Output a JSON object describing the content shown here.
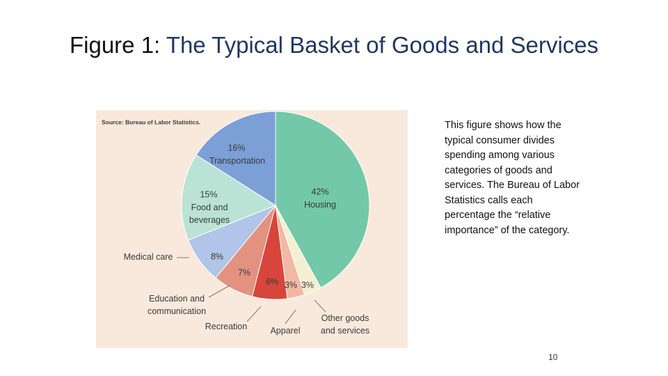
{
  "slide": {
    "title_label": "Figure 1:",
    "title": "The Typical Basket of Goods and Services",
    "body": "This figure shows how the typical consumer divides spending among various categories of goods and services. The Bureau of Labor Statistics calls each percentage the “relative importance” of the category.",
    "page_number": "10"
  },
  "chart_data": {
    "type": "pie",
    "source": "Source: Bureau of Labor Statistics.",
    "categories": [
      "Housing",
      "Other goods\nand services",
      "Apparel",
      "Recreation",
      "Education and\ncommunication",
      "Medical care",
      "Food and\nbeverages",
      "Transportation"
    ],
    "values": [
      42,
      3,
      3,
      6,
      7,
      8,
      15,
      16
    ],
    "value_labels": [
      "42%",
      "3%",
      "3%",
      "6%",
      "7%",
      "8%",
      "15%",
      "16%"
    ],
    "colors": [
      "#72c8a9",
      "#f5efd2",
      "#f1b9a3",
      "#d8453b",
      "#e39280",
      "#b0c5e7",
      "#bae3d5",
      "#7c9fd7"
    ]
  }
}
